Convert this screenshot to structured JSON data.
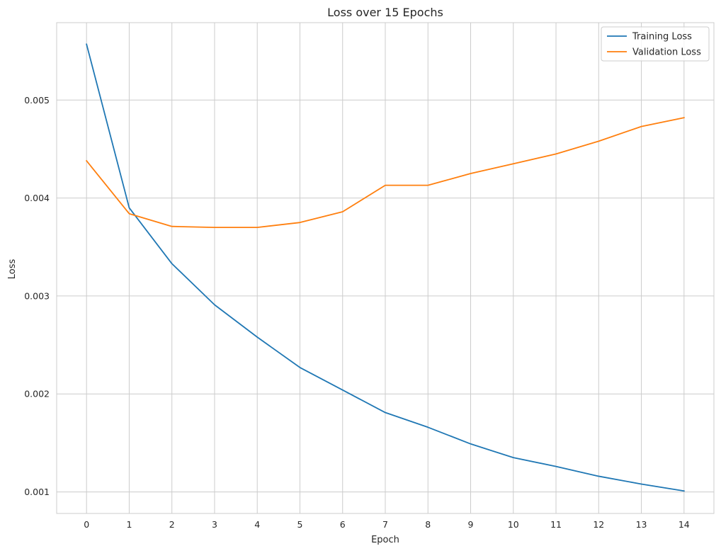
{
  "chart_data": {
    "type": "line",
    "title": "Loss over 15 Epochs",
    "xlabel": "Epoch",
    "ylabel": "Loss",
    "x": [
      0,
      1,
      2,
      3,
      4,
      5,
      6,
      7,
      8,
      9,
      10,
      11,
      12,
      13,
      14
    ],
    "xticks": [
      "0",
      "1",
      "2",
      "3",
      "4",
      "5",
      "6",
      "7",
      "8",
      "9",
      "10",
      "11",
      "12",
      "13",
      "14"
    ],
    "yticks": [
      0.001,
      0.002,
      0.003,
      0.004,
      0.005
    ],
    "ytick_labels": [
      "0.001",
      "0.002",
      "0.003",
      "0.004",
      "0.005"
    ],
    "xlim": [
      -0.7,
      14.7
    ],
    "ylim": [
      0.00078,
      0.00579
    ],
    "grid": true,
    "legend_position": "top-right",
    "series": [
      {
        "name": "Training Loss",
        "color": "#1f77b4",
        "values": [
          0.00557,
          0.0039,
          0.00333,
          0.00291,
          0.00258,
          0.00227,
          0.00204,
          0.00181,
          0.00166,
          0.00149,
          0.00135,
          0.00126,
          0.00116,
          0.00108,
          0.00101
        ]
      },
      {
        "name": "Validation Loss",
        "color": "#ff7f0e",
        "values": [
          0.00438,
          0.00384,
          0.00371,
          0.0037,
          0.0037,
          0.00375,
          0.00386,
          0.00413,
          0.00413,
          0.00425,
          0.00435,
          0.00445,
          0.00458,
          0.00473,
          0.00482
        ]
      }
    ]
  }
}
